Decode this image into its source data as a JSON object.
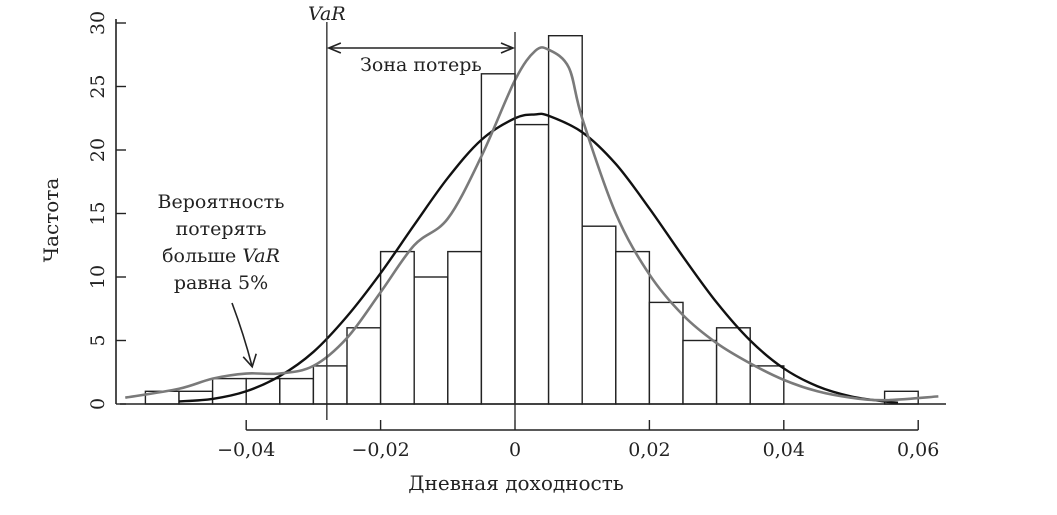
{
  "chart_data": {
    "type": "bar",
    "title": "",
    "xlabel": "Дневная доходность",
    "ylabel": "Частота",
    "xlim": [
      -0.057,
      0.063
    ],
    "ylim": [
      0,
      30
    ],
    "x_ticks": [
      {
        "value": -0.04,
        "label": "−0,04"
      },
      {
        "value": -0.02,
        "label": "−0,02"
      },
      {
        "value": 0,
        "label": "0"
      },
      {
        "value": 0.02,
        "label": "0,02"
      },
      {
        "value": 0.04,
        "label": "0,04"
      },
      {
        "value": 0.06,
        "label": "0,06"
      }
    ],
    "y_ticks": [
      {
        "value": 0,
        "label": "0"
      },
      {
        "value": 5,
        "label": "5"
      },
      {
        "value": 10,
        "label": "10"
      },
      {
        "value": 15,
        "label": "15"
      },
      {
        "value": 20,
        "label": "20"
      },
      {
        "value": 25,
        "label": "25"
      },
      {
        "value": 30,
        "label": "30"
      }
    ],
    "bins": [
      {
        "start": -0.055,
        "end": -0.05,
        "count": 1
      },
      {
        "start": -0.05,
        "end": -0.045,
        "count": 1
      },
      {
        "start": -0.045,
        "end": -0.04,
        "count": 2
      },
      {
        "start": -0.04,
        "end": -0.035,
        "count": 2
      },
      {
        "start": -0.035,
        "end": -0.03,
        "count": 2
      },
      {
        "start": -0.03,
        "end": -0.025,
        "count": 3
      },
      {
        "start": -0.025,
        "end": -0.02,
        "count": 6
      },
      {
        "start": -0.02,
        "end": -0.015,
        "count": 12
      },
      {
        "start": -0.015,
        "end": -0.01,
        "count": 10
      },
      {
        "start": -0.01,
        "end": -0.005,
        "count": 12
      },
      {
        "start": -0.005,
        "end": 0,
        "count": 26
      },
      {
        "start": 0,
        "end": 0.005,
        "count": 22
      },
      {
        "start": 0.005,
        "end": 0.01,
        "count": 29
      },
      {
        "start": 0.01,
        "end": 0.015,
        "count": 14
      },
      {
        "start": 0.015,
        "end": 0.02,
        "count": 12
      },
      {
        "start": 0.02,
        "end": 0.025,
        "count": 8
      },
      {
        "start": 0.025,
        "end": 0.03,
        "count": 5
      },
      {
        "start": 0.03,
        "end": 0.035,
        "count": 6
      },
      {
        "start": 0.035,
        "end": 0.04,
        "count": 3
      },
      {
        "start": 0.055,
        "end": 0.06,
        "count": 1
      }
    ],
    "series": [
      {
        "type": "line",
        "color": "#111111",
        "x": [
          -0.05,
          -0.045,
          -0.04,
          -0.035,
          -0.03,
          -0.025,
          -0.02,
          -0.015,
          -0.01,
          -0.005,
          0,
          0.003,
          0.005,
          0.01,
          0.015,
          0.02,
          0.025,
          0.03,
          0.035,
          0.04,
          0.045,
          0.05,
          0.055,
          0.057
        ],
        "y": [
          0.2,
          0.4,
          1.0,
          2.2,
          4.1,
          6.9,
          10.3,
          14.1,
          17.8,
          20.8,
          22.5,
          22.8,
          22.7,
          21.4,
          18.9,
          15.4,
          11.6,
          8.0,
          5.0,
          2.8,
          1.4,
          0.6,
          0.2,
          0.1
        ]
      },
      {
        "type": "line",
        "color": "#7a7a7a",
        "x": [
          -0.058,
          -0.05,
          -0.045,
          -0.04,
          -0.035,
          -0.03,
          -0.025,
          -0.02,
          -0.015,
          -0.01,
          -0.005,
          0,
          0.003,
          0.005,
          0.008,
          0.01,
          0.015,
          0.02,
          0.025,
          0.03,
          0.035,
          0.04,
          0.045,
          0.05,
          0.055,
          0.063
        ],
        "y": [
          0.5,
          1.2,
          2.0,
          2.4,
          2.4,
          3.0,
          5.2,
          8.8,
          12.5,
          14.6,
          19.5,
          25.5,
          27.8,
          27.9,
          26.5,
          22.5,
          15.0,
          10.2,
          7.0,
          4.8,
          3.2,
          1.9,
          1.0,
          0.5,
          0.3,
          0.6
        ]
      }
    ],
    "var_line": {
      "x": -0.028,
      "label": "VaR"
    },
    "zero_line": {
      "x": 0
    },
    "loss_zone": {
      "from": -0.028,
      "to": 0,
      "label": "Зона потерь"
    },
    "probability_note": {
      "lines": [
        "Вероятность",
        "потерять",
        "больше VaR",
        "равна 5%"
      ],
      "arrow_target": {
        "x": -0.04,
        "y": 2.3
      }
    }
  }
}
